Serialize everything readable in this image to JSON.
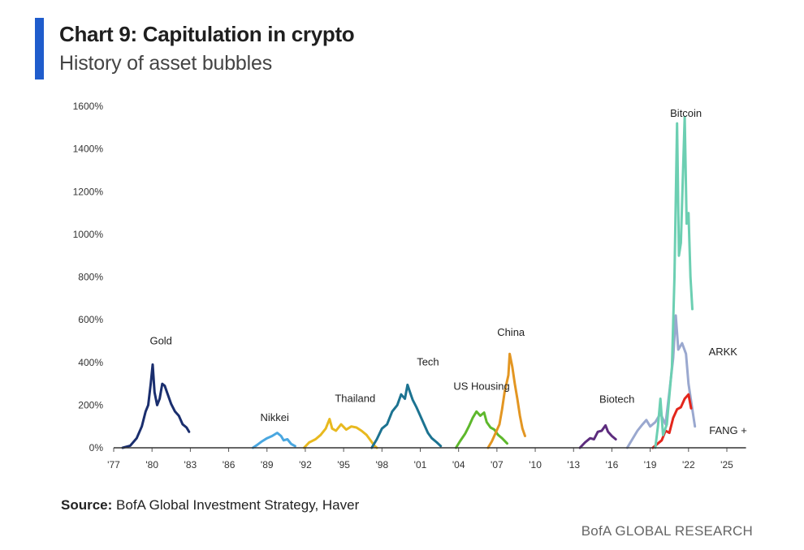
{
  "header": {
    "title": "Chart 9: Capitulation in crypto",
    "subtitle": "History of asset bubbles",
    "accent_color": "#1f5ccc"
  },
  "footer": {
    "source_label": "Source:",
    "source_text": "BofA Global Investment Strategy, Haver",
    "brand": "BofA GLOBAL RESEARCH"
  },
  "chart_data": {
    "type": "line",
    "title": "Chart 9: Capitulation in crypto",
    "subtitle": "History of asset bubbles",
    "xlabel": "",
    "ylabel": "",
    "xlim": [
      1977,
      1927
    ],
    "ylim": [
      0,
      1600
    ],
    "y_ticks": [
      0,
      200,
      400,
      600,
      800,
      1000,
      1200,
      1400,
      1600
    ],
    "y_tick_labels": [
      "0%",
      "200%",
      "400%",
      "600%",
      "800%",
      "1000%",
      "1200%",
      "1400%",
      "1600%"
    ],
    "x_ticks": [
      1977,
      1980,
      1983,
      1986,
      1989,
      1992,
      1995,
      1998,
      2001,
      2004,
      2007,
      2010,
      2013,
      2016,
      2019,
      2022,
      2025
    ],
    "x_tick_labels": [
      "'77",
      "'80",
      "'83",
      "'86",
      "'89",
      "'92",
      "'95",
      "'98",
      "'01",
      "'04",
      "'07",
      "'10",
      "'13",
      "'16",
      "'19",
      "'22",
      "'25"
    ],
    "grid": false,
    "legend": "none",
    "baseline_color": "#333333",
    "series": [
      {
        "name": "Gold",
        "color": "#1a2e6e",
        "label_at": [
          1980.7,
          485
        ],
        "points": [
          [
            1977.7,
            0
          ],
          [
            1978.3,
            10
          ],
          [
            1978.8,
            45
          ],
          [
            1979.2,
            100
          ],
          [
            1979.5,
            170
          ],
          [
            1979.7,
            200
          ],
          [
            1979.9,
            300
          ],
          [
            1980.05,
            390
          ],
          [
            1980.2,
            260
          ],
          [
            1980.4,
            200
          ],
          [
            1980.6,
            230
          ],
          [
            1980.8,
            300
          ],
          [
            1981.0,
            290
          ],
          [
            1981.2,
            255
          ],
          [
            1981.5,
            205
          ],
          [
            1981.8,
            170
          ],
          [
            1982.1,
            150
          ],
          [
            1982.4,
            110
          ],
          [
            1982.7,
            95
          ],
          [
            1982.9,
            75
          ]
        ]
      },
      {
        "name": "Nikkei",
        "color": "#4aa7e0",
        "label_at": [
          1989.6,
          125
        ],
        "points": [
          [
            1987.9,
            0
          ],
          [
            1988.2,
            12
          ],
          [
            1988.6,
            30
          ],
          [
            1989.0,
            45
          ],
          [
            1989.4,
            55
          ],
          [
            1989.8,
            70
          ],
          [
            1990.1,
            55
          ],
          [
            1990.3,
            35
          ],
          [
            1990.6,
            40
          ],
          [
            1990.9,
            18
          ],
          [
            1991.2,
            8
          ]
        ]
      },
      {
        "name": "Thailand",
        "color": "#e8b91f",
        "label_at": [
          1995.9,
          215
        ],
        "points": [
          [
            1991.9,
            0
          ],
          [
            1992.3,
            25
          ],
          [
            1992.8,
            40
          ],
          [
            1993.2,
            60
          ],
          [
            1993.6,
            90
          ],
          [
            1993.9,
            135
          ],
          [
            1994.1,
            90
          ],
          [
            1994.4,
            80
          ],
          [
            1994.8,
            110
          ],
          [
            1995.2,
            85
          ],
          [
            1995.6,
            100
          ],
          [
            1996.0,
            95
          ],
          [
            1996.4,
            80
          ],
          [
            1996.8,
            60
          ],
          [
            1997.1,
            35
          ],
          [
            1997.4,
            10
          ],
          [
            1997.6,
            0
          ]
        ]
      },
      {
        "name": "Tech",
        "color": "#1c7391",
        "label_at": [
          2001.6,
          385
        ],
        "points": [
          [
            1997.2,
            0
          ],
          [
            1997.6,
            40
          ],
          [
            1998.0,
            90
          ],
          [
            1998.4,
            110
          ],
          [
            1998.8,
            170
          ],
          [
            1999.2,
            200
          ],
          [
            1999.5,
            250
          ],
          [
            1999.8,
            230
          ],
          [
            2000.0,
            295
          ],
          [
            2000.2,
            260
          ],
          [
            2000.4,
            225
          ],
          [
            2000.7,
            190
          ],
          [
            2001.0,
            150
          ],
          [
            2001.3,
            110
          ],
          [
            2001.6,
            70
          ],
          [
            2001.9,
            45
          ],
          [
            2002.3,
            25
          ],
          [
            2002.6,
            8
          ]
        ]
      },
      {
        "name": "US Housing",
        "color": "#5eb82c",
        "label_at": [
          2005.8,
          272
        ],
        "points": [
          [
            2003.8,
            0
          ],
          [
            2004.1,
            30
          ],
          [
            2004.5,
            65
          ],
          [
            2004.8,
            100
          ],
          [
            2005.1,
            140
          ],
          [
            2005.4,
            170
          ],
          [
            2005.7,
            150
          ],
          [
            2006.0,
            165
          ],
          [
            2006.2,
            120
          ],
          [
            2006.5,
            95
          ],
          [
            2006.8,
            85
          ],
          [
            2007.1,
            60
          ],
          [
            2007.4,
            45
          ],
          [
            2007.8,
            20
          ]
        ]
      },
      {
        "name": "China",
        "color": "#e39622",
        "label_at": [
          2008.1,
          525
        ],
        "points": [
          [
            2006.3,
            0
          ],
          [
            2006.6,
            30
          ],
          [
            2006.9,
            70
          ],
          [
            2007.2,
            110
          ],
          [
            2007.4,
            180
          ],
          [
            2007.6,
            260
          ],
          [
            2007.9,
            340
          ],
          [
            2008.0,
            440
          ],
          [
            2008.2,
            380
          ],
          [
            2008.4,
            300
          ],
          [
            2008.6,
            230
          ],
          [
            2008.8,
            150
          ],
          [
            2009.0,
            90
          ],
          [
            2009.2,
            55
          ]
        ]
      },
      {
        "name": "Biotech",
        "color": "#5d2c7e",
        "label_at": [
          2016.4,
          210
        ],
        "points": [
          [
            2013.5,
            0
          ],
          [
            2013.9,
            25
          ],
          [
            2014.3,
            45
          ],
          [
            2014.6,
            40
          ],
          [
            2014.9,
            75
          ],
          [
            2015.2,
            80
          ],
          [
            2015.5,
            105
          ],
          [
            2015.7,
            75
          ],
          [
            2016.0,
            55
          ],
          [
            2016.3,
            40
          ]
        ]
      },
      {
        "name": "ARKK",
        "color": "#9aa8cf",
        "label_at": [
          2024.7,
          433
        ],
        "points": [
          [
            2017.2,
            0
          ],
          [
            2017.6,
            40
          ],
          [
            2018.0,
            80
          ],
          [
            2018.4,
            110
          ],
          [
            2018.7,
            130
          ],
          [
            2019.0,
            100
          ],
          [
            2019.4,
            120
          ],
          [
            2019.8,
            160
          ],
          [
            2020.2,
            110
          ],
          [
            2020.5,
            260
          ],
          [
            2020.8,
            420
          ],
          [
            2021.0,
            620
          ],
          [
            2021.2,
            460
          ],
          [
            2021.5,
            490
          ],
          [
            2021.8,
            440
          ],
          [
            2022.0,
            300
          ],
          [
            2022.3,
            180
          ],
          [
            2022.5,
            100
          ]
        ]
      },
      {
        "name": "FANG +",
        "color": "#e3261c",
        "label_at": [
          2025.1,
          65
        ],
        "points": [
          [
            2019.2,
            0
          ],
          [
            2019.6,
            20
          ],
          [
            2019.9,
            35
          ],
          [
            2020.2,
            80
          ],
          [
            2020.5,
            70
          ],
          [
            2020.8,
            140
          ],
          [
            2021.1,
            180
          ],
          [
            2021.4,
            190
          ],
          [
            2021.7,
            230
          ],
          [
            2022.0,
            250
          ],
          [
            2022.2,
            185
          ]
        ]
      },
      {
        "name": "Bitcoin",
        "color": "#6ccfb2",
        "label_at": [
          2021.8,
          1550
        ],
        "points": [
          [
            2019.4,
            0
          ],
          [
            2019.6,
            100
          ],
          [
            2019.8,
            230
          ],
          [
            2020.0,
            60
          ],
          [
            2020.3,
            110
          ],
          [
            2020.7,
            380
          ],
          [
            2020.9,
            800
          ],
          [
            2021.1,
            1520
          ],
          [
            2021.25,
            900
          ],
          [
            2021.4,
            960
          ],
          [
            2021.55,
            1250
          ],
          [
            2021.7,
            1550
          ],
          [
            2021.85,
            1050
          ],
          [
            2022.0,
            1100
          ],
          [
            2022.15,
            800
          ],
          [
            2022.3,
            650
          ]
        ]
      }
    ]
  }
}
